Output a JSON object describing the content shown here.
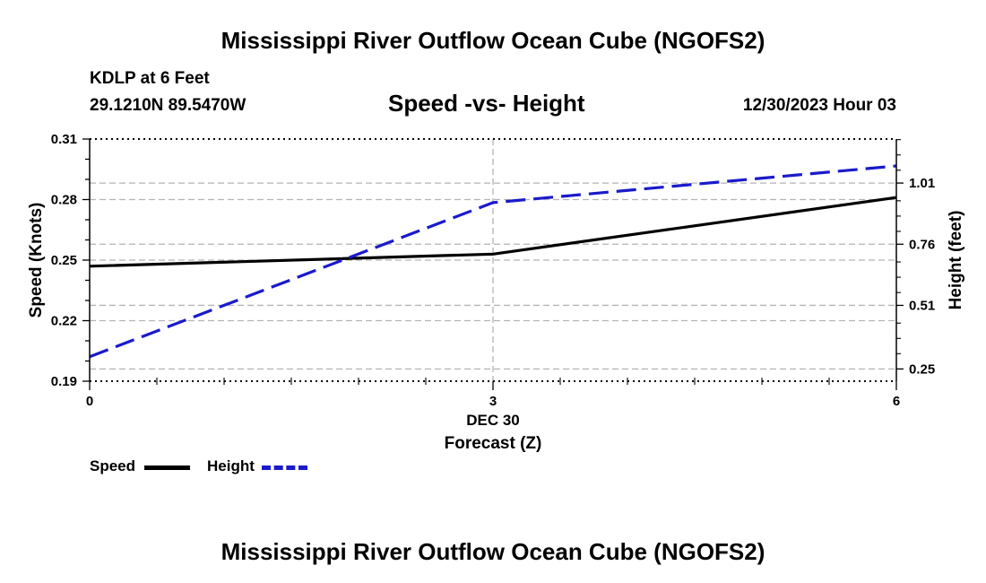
{
  "page": {
    "title_top": "Mississippi River Outflow Ocean Cube (NGOFS2)",
    "title_bottom": "Mississippi River Outflow Ocean Cube (NGOFS2)",
    "station": "KDLP at 6 Feet",
    "coords": "29.1210N  89.5470W",
    "datetime": "12/30/2023 Hour 03"
  },
  "chart_data": {
    "type": "line",
    "title": "Speed -vs- Height",
    "xlabel": "Forecast (Z)",
    "x_date_label": "DEC 30",
    "x": [
      0,
      3,
      6
    ],
    "x_tick_labels": [
      "0",
      "3",
      "6"
    ],
    "xlim": [
      0,
      6
    ],
    "ylabel_left": "Speed (Knots)",
    "ylim_left": [
      0.19,
      0.31
    ],
    "y_ticks_left": [
      0.19,
      0.22,
      0.25,
      0.28,
      0.31
    ],
    "y_tick_labels_left": [
      "0.19",
      "0.22",
      "0.25",
      "0.28",
      "0.31"
    ],
    "ylabel_right": "Height (feet)",
    "ylim_right": [
      0.2,
      1.19
    ],
    "y_ticks_right": [
      0.25,
      0.51,
      0.76,
      1.01
    ],
    "y_tick_labels_right": [
      "0.25",
      "0.51",
      "0.76",
      "1.01"
    ],
    "series": [
      {
        "name": "Speed",
        "axis": "left",
        "color": "#000000",
        "style": "solid",
        "values": [
          0.247,
          0.253,
          0.281
        ]
      },
      {
        "name": "Height",
        "axis": "right",
        "color": "#1a1acc",
        "style": "dashed",
        "values": [
          0.3,
          0.93,
          1.08
        ]
      }
    ],
    "legend": [
      {
        "label": "Speed",
        "color": "#000000",
        "style": "solid"
      },
      {
        "label": "Height",
        "color": "#1a1acc",
        "style": "dashed"
      }
    ],
    "grid": true,
    "legend_position": "bottom-left"
  }
}
